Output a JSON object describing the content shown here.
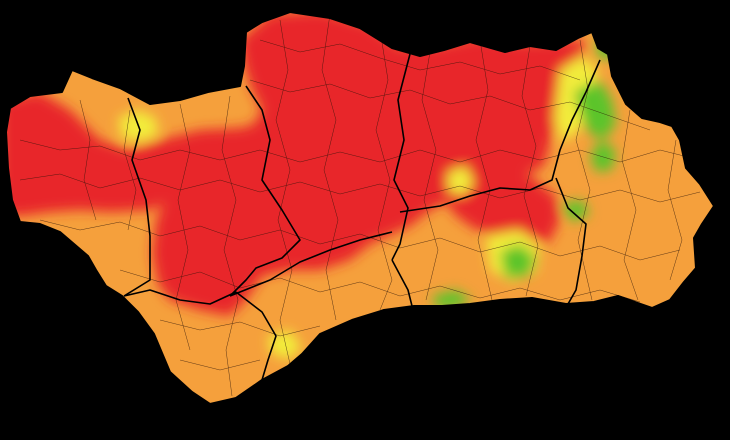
{
  "map": {
    "background_color": "#000000",
    "border_color": "#1a0f08",
    "region_border_color": "#000000",
    "risk_levels": [
      {
        "level": "very-high",
        "color": "#e8282a"
      },
      {
        "level": "high",
        "color": "#f5a03c"
      },
      {
        "level": "moderate",
        "color": "#f2ec3a"
      },
      {
        "level": "low",
        "color": "#5cc42c"
      }
    ]
  }
}
